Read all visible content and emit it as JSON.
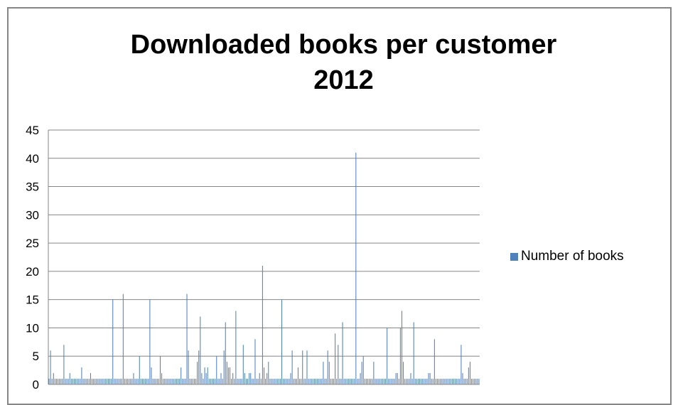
{
  "chart_data": {
    "type": "bar",
    "title_line1": "Downloaded books per customer",
    "title_line2": "2012",
    "xlabel": "",
    "ylabel": "",
    "ylim": [
      0,
      45
    ],
    "yticks": [
      "0",
      "5",
      "10",
      "15",
      "20",
      "25",
      "30",
      "35",
      "40",
      "45"
    ],
    "grid": true,
    "legend_position": "right",
    "series": [
      {
        "name": "Number of books",
        "color": "#4f81bd",
        "values": [
          1,
          6,
          1,
          2,
          1,
          1,
          1,
          1,
          1,
          1,
          7,
          1,
          1,
          1,
          2,
          1,
          1,
          1,
          1,
          1,
          1,
          1,
          3,
          1,
          1,
          1,
          1,
          1,
          2,
          1,
          1,
          1,
          1,
          1,
          1,
          1,
          1,
          1,
          1,
          1,
          1,
          1,
          1,
          15,
          1,
          1,
          1,
          1,
          1,
          1,
          16,
          1,
          1,
          1,
          1,
          1,
          1,
          2,
          1,
          1,
          1,
          5,
          1,
          1,
          1,
          1,
          1,
          1,
          15,
          3,
          1,
          1,
          1,
          1,
          1,
          5,
          2,
          1,
          1,
          1,
          1,
          1,
          1,
          1,
          1,
          1,
          1,
          1,
          1,
          3,
          1,
          1,
          1,
          16,
          6,
          1,
          1,
          1,
          1,
          1,
          4,
          6,
          12,
          2,
          1,
          3,
          2,
          3,
          1,
          1,
          1,
          1,
          1,
          5,
          1,
          1,
          2,
          1,
          6,
          11,
          4,
          3,
          3,
          1,
          2,
          1,
          13,
          1,
          1,
          1,
          1,
          7,
          2,
          1,
          1,
          2,
          2,
          1,
          1,
          8,
          1,
          1,
          2,
          1,
          21,
          3,
          1,
          2,
          4,
          1,
          1,
          1,
          1,
          1,
          1,
          1,
          1,
          15,
          1,
          1,
          1,
          1,
          1,
          2,
          6,
          1,
          1,
          1,
          3,
          1,
          1,
          6,
          1,
          1,
          6,
          1,
          1,
          1,
          1,
          1,
          1,
          1,
          1,
          1,
          1,
          4,
          1,
          1,
          6,
          4,
          1,
          1,
          1,
          9,
          1,
          7,
          1,
          1,
          11,
          1,
          1,
          1,
          1,
          1,
          1,
          1,
          1,
          41,
          1,
          1,
          2,
          4,
          5,
          1,
          1,
          1,
          1,
          1,
          1,
          4,
          1,
          1,
          1,
          1,
          1,
          1,
          1,
          1,
          10,
          1,
          1,
          1,
          1,
          1,
          2,
          2,
          1,
          10,
          13,
          4,
          1,
          1,
          1,
          1,
          2,
          1,
          11,
          1,
          1,
          1,
          1,
          1,
          1,
          1,
          1,
          1,
          2,
          2,
          1,
          1,
          8,
          1,
          1,
          1,
          1,
          1,
          1,
          1,
          1,
          1,
          1,
          1,
          1,
          1,
          1,
          1,
          1,
          1,
          7,
          2,
          1,
          1,
          1,
          3,
          4,
          1,
          1,
          1,
          1,
          1,
          1
        ]
      }
    ]
  }
}
